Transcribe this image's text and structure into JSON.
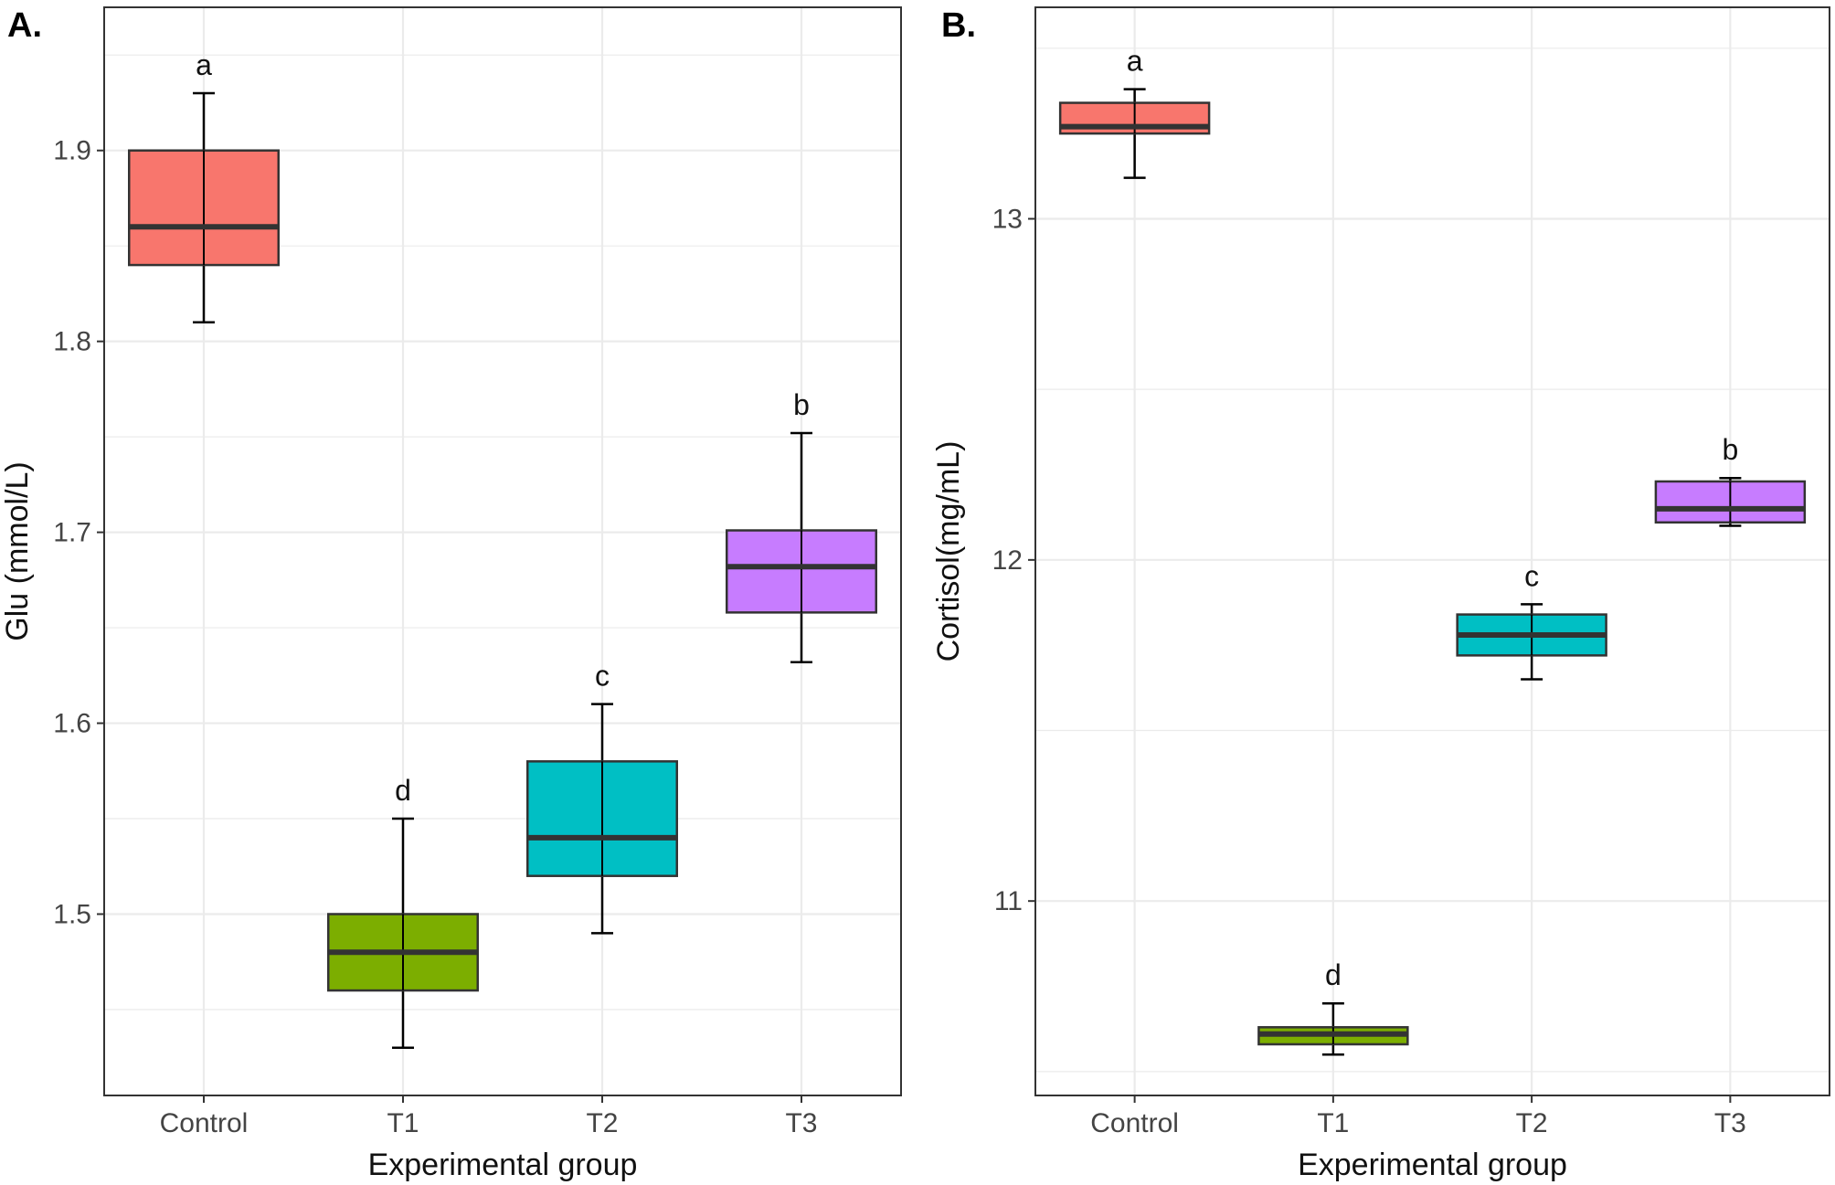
{
  "chart_data": [
    {
      "type": "box",
      "panel_label": "A.",
      "xlabel": "Experimental group",
      "ylabel": "Glu (mmol/L)",
      "ylim": [
        1.405,
        1.975
      ],
      "yticks": [
        1.5,
        1.6,
        1.7,
        1.8,
        1.9
      ],
      "ytick_labels": [
        "1.5",
        "1.6",
        "1.7",
        "1.8",
        "1.9"
      ],
      "grid": true,
      "categories": [
        "Control",
        "T1",
        "T2",
        "T3"
      ],
      "groups": [
        {
          "name": "Control",
          "color": "#F8766D",
          "whisker_low": 1.81,
          "q1": 1.84,
          "median": 1.86,
          "q3": 1.9,
          "whisker_high": 1.93,
          "letter": "a"
        },
        {
          "name": "T1",
          "color": "#7CAE00",
          "whisker_low": 1.43,
          "q1": 1.46,
          "median": 1.48,
          "q3": 1.5,
          "whisker_high": 1.55,
          "letter": "d"
        },
        {
          "name": "T2",
          "color": "#00BFC4",
          "whisker_low": 1.49,
          "q1": 1.52,
          "median": 1.54,
          "q3": 1.58,
          "whisker_high": 1.61,
          "letter": "c"
        },
        {
          "name": "T3",
          "color": "#C77CFF",
          "whisker_low": 1.632,
          "q1": 1.658,
          "median": 1.682,
          "q3": 1.701,
          "whisker_high": 1.752,
          "letter": "b"
        }
      ]
    },
    {
      "type": "box",
      "panel_label": "B.",
      "xlabel": "Experimental group",
      "ylabel": "Cortisol(mg/mL)",
      "ylim": [
        10.43,
        13.62
      ],
      "yticks": [
        11,
        12,
        13
      ],
      "ytick_labels": [
        "11",
        "12",
        "13"
      ],
      "grid": true,
      "categories": [
        "Control",
        "T1",
        "T2",
        "T3"
      ],
      "groups": [
        {
          "name": "Control",
          "color": "#F8766D",
          "whisker_low": 13.12,
          "q1": 13.25,
          "median": 13.27,
          "q3": 13.34,
          "whisker_high": 13.38,
          "letter": "a"
        },
        {
          "name": "T1",
          "color": "#7CAE00",
          "whisker_low": 10.55,
          "q1": 10.58,
          "median": 10.61,
          "q3": 10.63,
          "whisker_high": 10.7,
          "letter": "d"
        },
        {
          "name": "T2",
          "color": "#00BFC4",
          "whisker_low": 11.65,
          "q1": 11.72,
          "median": 11.78,
          "q3": 11.84,
          "whisker_high": 11.87,
          "letter": "c"
        },
        {
          "name": "T3",
          "color": "#C77CFF",
          "whisker_low": 12.1,
          "q1": 12.11,
          "median": 12.15,
          "q3": 12.23,
          "whisker_high": 12.24,
          "letter": "b"
        }
      ]
    }
  ]
}
